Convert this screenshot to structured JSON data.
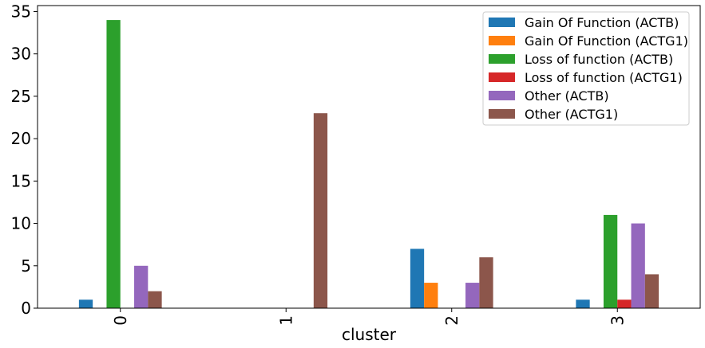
{
  "chart_data": {
    "type": "bar",
    "title": "",
    "xlabel": "cluster",
    "ylabel": "",
    "categories": [
      "0",
      "1",
      "2",
      "3"
    ],
    "ylim": [
      0,
      35.7
    ],
    "yticks": [
      0,
      5,
      10,
      15,
      20,
      25,
      30,
      35
    ],
    "grid": false,
    "legend_position": "top-right",
    "series": [
      {
        "name": "Gain Of Function (ACTB)",
        "color": "#1f77b4",
        "values": [
          1,
          0,
          7,
          1
        ]
      },
      {
        "name": "Gain Of Function (ACTG1)",
        "color": "#ff7f0e",
        "values": [
          0,
          0,
          3,
          0
        ]
      },
      {
        "name": "Loss of function (ACTB)",
        "color": "#2ca02c",
        "values": [
          34,
          0,
          0,
          11
        ]
      },
      {
        "name": "Loss of function (ACTG1)",
        "color": "#d62728",
        "values": [
          0,
          0,
          0,
          1
        ]
      },
      {
        "name": "Other (ACTB)",
        "color": "#9467bd",
        "values": [
          5,
          0,
          3,
          10
        ]
      },
      {
        "name": "Other (ACTG1)",
        "color": "#8c564b",
        "values": [
          2,
          23,
          6,
          4
        ]
      }
    ]
  }
}
